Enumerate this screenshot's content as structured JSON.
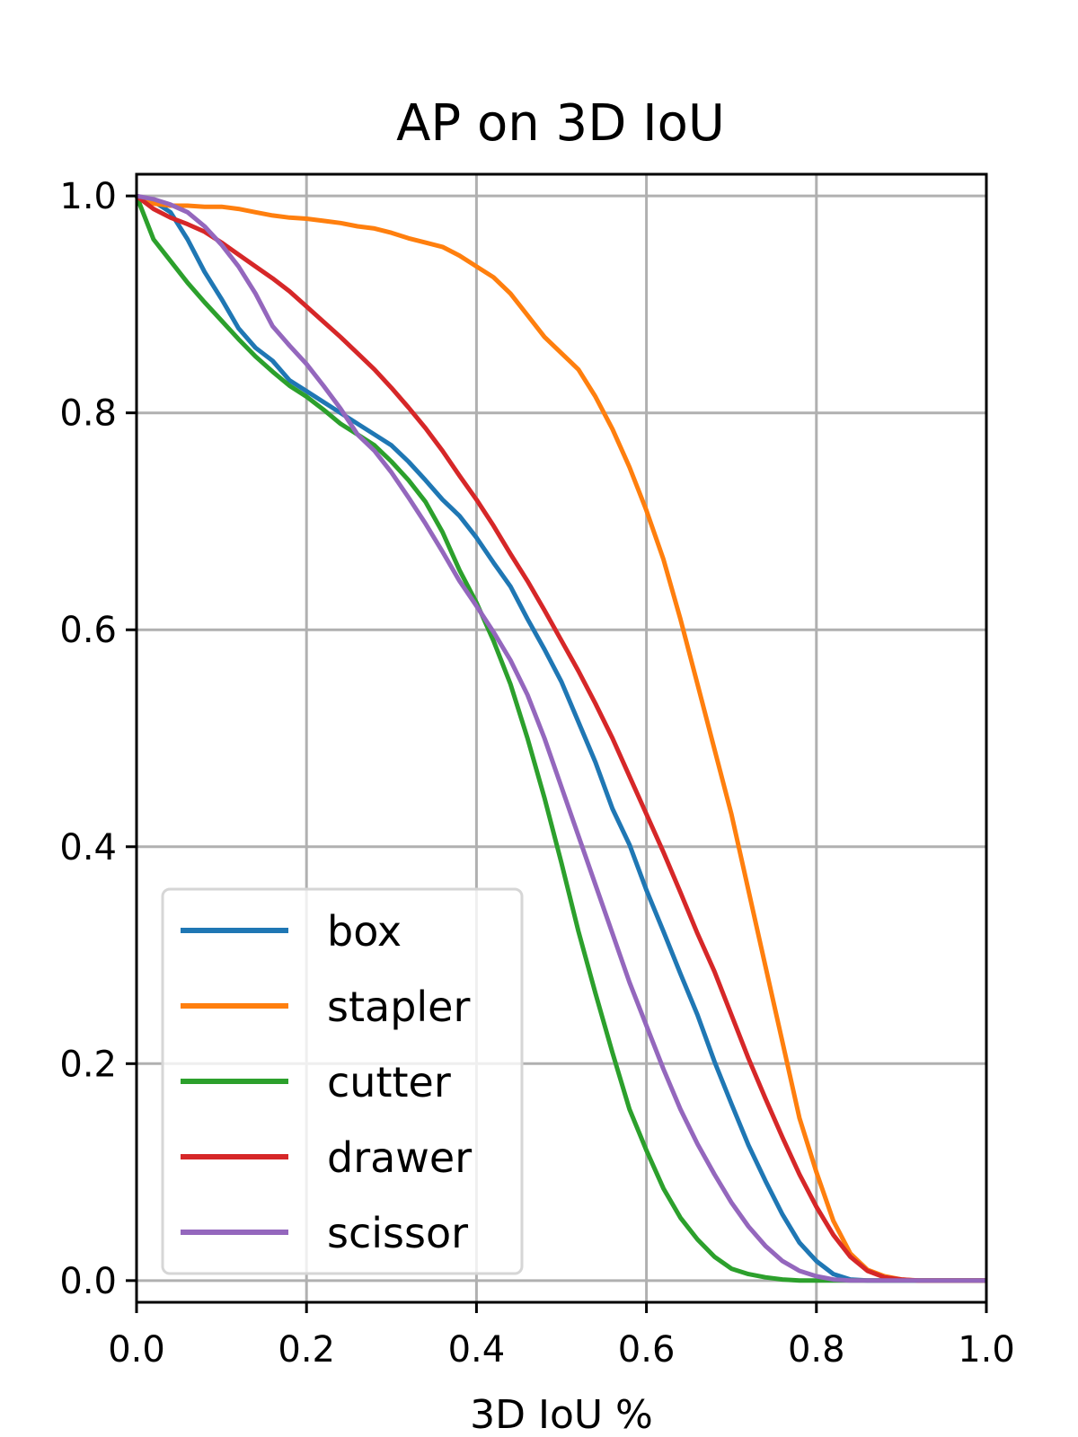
{
  "chart_data": {
    "type": "line",
    "title": "AP on 3D IoU",
    "xlabel": "3D IoU %",
    "ylabel": "",
    "xlim": [
      0.0,
      1.0
    ],
    "ylim": [
      -0.02,
      1.02
    ],
    "xticks": [
      "0.0",
      "0.2",
      "0.4",
      "0.6",
      "0.8",
      "1.0"
    ],
    "yticks": [
      "0.0",
      "0.2",
      "0.4",
      "0.6",
      "0.8",
      "1.0"
    ],
    "grid": true,
    "legend_position": "lower-left",
    "x": [
      0.0,
      0.02,
      0.04,
      0.06,
      0.08,
      0.1,
      0.12,
      0.14,
      0.16,
      0.18,
      0.2,
      0.22,
      0.24,
      0.26,
      0.28,
      0.3,
      0.32,
      0.34,
      0.36,
      0.38,
      0.4,
      0.42,
      0.44,
      0.46,
      0.48,
      0.5,
      0.52,
      0.54,
      0.56,
      0.58,
      0.6,
      0.62,
      0.64,
      0.66,
      0.68,
      0.7,
      0.72,
      0.74,
      0.76,
      0.78,
      0.8,
      0.82,
      0.84,
      0.86,
      0.88,
      0.9,
      0.92,
      0.94,
      0.96,
      0.98,
      1.0
    ],
    "series": [
      {
        "name": "box",
        "color": "#1f77b4",
        "values": [
          1.0,
          0.995,
          0.985,
          0.96,
          0.93,
          0.905,
          0.878,
          0.86,
          0.848,
          0.83,
          0.82,
          0.81,
          0.8,
          0.79,
          0.78,
          0.77,
          0.755,
          0.738,
          0.72,
          0.705,
          0.685,
          0.662,
          0.64,
          0.61,
          0.582,
          0.552,
          0.515,
          0.478,
          0.435,
          0.402,
          0.36,
          0.322,
          0.283,
          0.245,
          0.202,
          0.163,
          0.125,
          0.092,
          0.061,
          0.035,
          0.018,
          0.006,
          0.001,
          0.0,
          0.0,
          0.0,
          0.0,
          0.0,
          0.0,
          0.0,
          0.0
        ]
      },
      {
        "name": "stapler",
        "color": "#ff7f0e",
        "values": [
          1.0,
          0.993,
          0.991,
          0.991,
          0.99,
          0.99,
          0.988,
          0.985,
          0.982,
          0.98,
          0.979,
          0.977,
          0.975,
          0.972,
          0.97,
          0.966,
          0.961,
          0.957,
          0.953,
          0.945,
          0.935,
          0.925,
          0.91,
          0.89,
          0.87,
          0.855,
          0.84,
          0.815,
          0.785,
          0.75,
          0.71,
          0.665,
          0.61,
          0.55,
          0.49,
          0.43,
          0.36,
          0.29,
          0.22,
          0.15,
          0.1,
          0.055,
          0.025,
          0.01,
          0.004,
          0.001,
          0.0,
          0.0,
          0.0,
          0.0,
          0.0
        ]
      },
      {
        "name": "cutter",
        "color": "#2ca02c",
        "values": [
          1.0,
          0.96,
          0.94,
          0.92,
          0.902,
          0.885,
          0.868,
          0.852,
          0.838,
          0.825,
          0.815,
          0.803,
          0.79,
          0.78,
          0.77,
          0.755,
          0.738,
          0.718,
          0.69,
          0.655,
          0.625,
          0.59,
          0.55,
          0.5,
          0.445,
          0.385,
          0.322,
          0.265,
          0.21,
          0.158,
          0.12,
          0.085,
          0.058,
          0.038,
          0.022,
          0.011,
          0.006,
          0.003,
          0.001,
          0.0,
          0.0,
          0.0,
          0.0,
          0.0,
          0.0,
          0.0,
          0.0,
          0.0,
          0.0,
          0.0,
          0.0
        ]
      },
      {
        "name": "drawer",
        "color": "#d62728",
        "values": [
          1.0,
          0.988,
          0.98,
          0.974,
          0.967,
          0.957,
          0.946,
          0.935,
          0.924,
          0.912,
          0.898,
          0.884,
          0.87,
          0.855,
          0.84,
          0.823,
          0.805,
          0.786,
          0.765,
          0.742,
          0.72,
          0.696,
          0.67,
          0.645,
          0.618,
          0.59,
          0.562,
          0.532,
          0.5,
          0.465,
          0.43,
          0.395,
          0.358,
          0.32,
          0.285,
          0.245,
          0.205,
          0.168,
          0.132,
          0.098,
          0.068,
          0.042,
          0.022,
          0.009,
          0.003,
          0.001,
          0.0,
          0.0,
          0.0,
          0.0,
          0.0
        ]
      },
      {
        "name": "scissor",
        "color": "#9467bd",
        "values": [
          1.0,
          0.997,
          0.992,
          0.985,
          0.972,
          0.955,
          0.935,
          0.91,
          0.88,
          0.862,
          0.845,
          0.825,
          0.804,
          0.78,
          0.765,
          0.745,
          0.722,
          0.698,
          0.672,
          0.645,
          0.622,
          0.598,
          0.572,
          0.54,
          0.5,
          0.455,
          0.41,
          0.365,
          0.32,
          0.275,
          0.235,
          0.195,
          0.158,
          0.126,
          0.098,
          0.072,
          0.05,
          0.032,
          0.018,
          0.009,
          0.004,
          0.001,
          0.0,
          0.0,
          0.0,
          0.0,
          0.0,
          0.0,
          0.0,
          0.0,
          0.0
        ]
      }
    ]
  }
}
